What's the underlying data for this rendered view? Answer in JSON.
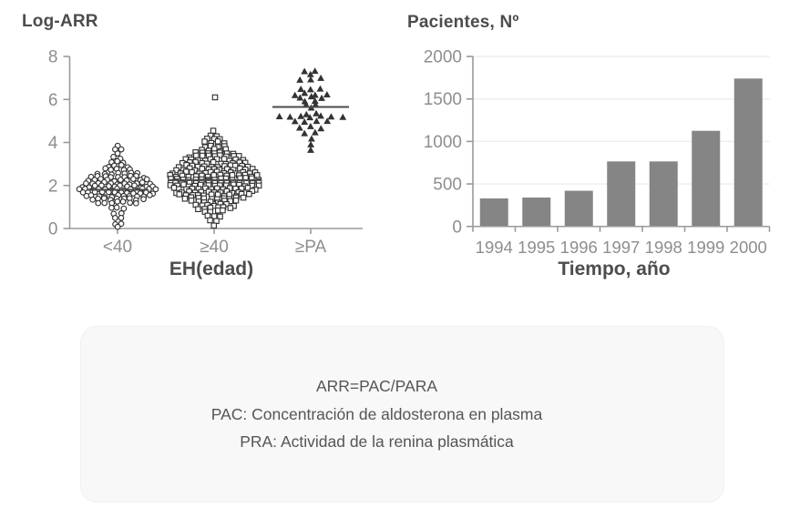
{
  "figure": {
    "left_title": "Log-ARR",
    "right_title": "Pacientes, Nº",
    "left_xlabel": "EH(edad)",
    "right_xlabel": "Tiempo, año"
  },
  "chart_data": [
    {
      "type": "scatter",
      "variant": "beeswarm-strip-plot",
      "title": "Log-ARR",
      "xlabel": "EH(edad)",
      "ylabel": "Log-ARR",
      "ylim": [
        0,
        8
      ],
      "yticks": [
        0,
        2,
        4,
        6,
        8
      ],
      "grid": false,
      "legend": "none",
      "categories": [
        "<40",
        "≥40",
        "≥PA"
      ],
      "groups": [
        {
          "category": "<40",
          "marker": "open-circle",
          "median": 1.8,
          "rows_y_count": [
            [
              3.85,
              1
            ],
            [
              3.7,
              2
            ],
            [
              3.45,
              1
            ],
            [
              3.3,
              2
            ],
            [
              3.1,
              3
            ],
            [
              2.9,
              4
            ],
            [
              2.75,
              5
            ],
            [
              2.55,
              7
            ],
            [
              2.4,
              9
            ],
            [
              2.25,
              10
            ],
            [
              2.1,
              11
            ],
            [
              1.95,
              12
            ],
            [
              1.8,
              13
            ],
            [
              1.65,
              12
            ],
            [
              1.5,
              11
            ],
            [
              1.35,
              9
            ],
            [
              1.2,
              7
            ],
            [
              0.95,
              3
            ],
            [
              0.7,
              2
            ],
            [
              0.45,
              2
            ],
            [
              0.2,
              2
            ],
            [
              0.1,
              1
            ]
          ]
        },
        {
          "category": "≥40",
          "marker": "open-square",
          "median": 2.25,
          "rows_y_count": [
            [
              6.05,
              1
            ],
            [
              4.55,
              1
            ],
            [
              4.3,
              2
            ],
            [
              4.15,
              3
            ],
            [
              4.0,
              4
            ],
            [
              3.8,
              4
            ],
            [
              3.65,
              5
            ],
            [
              3.5,
              7
            ],
            [
              3.35,
              9
            ],
            [
              3.2,
              10
            ],
            [
              3.05,
              11
            ],
            [
              2.9,
              12
            ],
            [
              2.75,
              13
            ],
            [
              2.6,
              14
            ],
            [
              2.45,
              15
            ],
            [
              2.3,
              15
            ],
            [
              2.15,
              15
            ],
            [
              2.0,
              15
            ],
            [
              1.85,
              14
            ],
            [
              1.7,
              13
            ],
            [
              1.55,
              12
            ],
            [
              1.4,
              10
            ],
            [
              1.25,
              8
            ],
            [
              1.1,
              7
            ],
            [
              0.95,
              6
            ],
            [
              0.8,
              4
            ],
            [
              0.6,
              3
            ],
            [
              0.35,
              2
            ],
            [
              0.15,
              1
            ]
          ]
        },
        {
          "category": "≥PA",
          "marker": "filled-triangle",
          "median": 5.65,
          "rows_y_count": [
            [
              7.3,
              2
            ],
            [
              7.2,
              1
            ],
            [
              6.95,
              3
            ],
            [
              6.45,
              3
            ],
            [
              6.25,
              4
            ],
            [
              6.1,
              3
            ],
            [
              5.95,
              2
            ],
            [
              5.8,
              2
            ],
            [
              5.6,
              1
            ],
            [
              5.35,
              2
            ],
            [
              5.2,
              7
            ],
            [
              4.95,
              4
            ],
            [
              4.7,
              3
            ],
            [
              4.45,
              2
            ],
            [
              4.2,
              1
            ],
            [
              3.95,
              1
            ],
            [
              3.6,
              1
            ]
          ]
        }
      ]
    },
    {
      "type": "bar",
      "title": "Pacientes, Nº",
      "xlabel": "Tiempo, año",
      "ylabel": "Pacientes, Nº",
      "ylim": [
        0,
        2000
      ],
      "yticks": [
        0,
        500,
        1000,
        1500,
        2000
      ],
      "grid": true,
      "legend": "none",
      "categories": [
        "1994",
        "1995",
        "1996",
        "1997",
        "1998",
        "1999",
        "2000"
      ],
      "values": [
        330,
        340,
        420,
        765,
        765,
        1125,
        1740
      ]
    }
  ],
  "note_box": {
    "lines": [
      "ARR=PAC/PARA",
      "PAC: Concentración de aldosterona en plasma",
      "PRA: Actividad de la renina plasmática"
    ]
  },
  "colors": {
    "marker": "#333333",
    "median_line": "#4a4a4a",
    "bar": "#858585",
    "axis": "#9a9a9a",
    "grid": "#eeeeee",
    "tick_label": "#8e8e8e",
    "heading": "#4c4c4c",
    "note_bg": "#f8f8f9",
    "note_text": "#555555",
    "background": "#ffffff"
  }
}
